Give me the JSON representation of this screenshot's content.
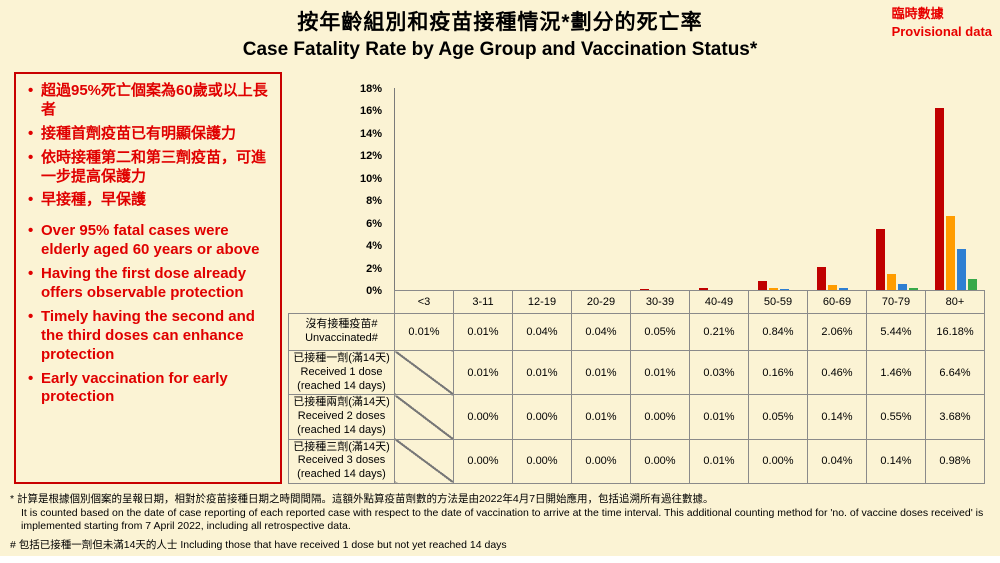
{
  "header": {
    "provisional_zh": "臨時數據",
    "provisional_en": "Provisional data",
    "title_zh": "按年齡組別和疫苗接種情況*劃分的死亡率",
    "title_en": "Case Fatality Rate by Age Group and Vaccination Status*",
    "accent_red": "#E00000"
  },
  "key_messages": {
    "zh": [
      "超過95%死亡個案為60歲或以上長者",
      "接種首劑疫苗已有明顯保護力",
      "依時接種第二和第三劑疫苗，可進一步提高保護力",
      "早接種，早保護"
    ],
    "en": [
      "Over 95% fatal cases were elderly aged 60 years or above",
      "Having the first dose already offers observable protection",
      "Timely having the second and the third doses can enhance protection",
      "Early vaccination for early protection"
    ]
  },
  "chart_data": {
    "type": "bar",
    "title": "Case Fatality Rate by Age Group and Vaccination Status*",
    "title_zh": "按年齡組別和疫苗接種情況*劃分的死亡率",
    "xlabel": "",
    "ylabel": "",
    "ylim": [
      0,
      18
    ],
    "grid": false,
    "legend_position": "table-row-labels",
    "y_ticks": [
      "0%",
      "2%",
      "4%",
      "6%",
      "8%",
      "10%",
      "12%",
      "14%",
      "16%",
      "18%"
    ],
    "categories": [
      "<3",
      "3-11",
      "12-19",
      "20-29",
      "30-39",
      "40-49",
      "50-59",
      "60-69",
      "70-79",
      "80+"
    ],
    "series": [
      {
        "label_lines": [
          "沒有接種疫苗#",
          "Unvaccinated#"
        ],
        "color": "#C00000",
        "values": [
          0.01,
          0.01,
          0.04,
          0.04,
          0.05,
          0.21,
          0.84,
          2.06,
          5.44,
          16.18
        ],
        "display": [
          "0.01%",
          "0.01%",
          "0.04%",
          "0.04%",
          "0.05%",
          "0.21%",
          "0.84%",
          "2.06%",
          "5.44%",
          "16.18%"
        ]
      },
      {
        "label_lines": [
          "已接種一劑(滿14天)",
          "Received 1 dose",
          "(reached 14 days)"
        ],
        "color": "#FF9C00",
        "values": [
          null,
          0.01,
          0.01,
          0.01,
          0.01,
          0.03,
          0.16,
          0.46,
          1.46,
          6.64
        ],
        "display": [
          null,
          "0.01%",
          "0.01%",
          "0.01%",
          "0.01%",
          "0.03%",
          "0.16%",
          "0.46%",
          "1.46%",
          "6.64%"
        ]
      },
      {
        "label_lines": [
          "已接種兩劑(滿14天)",
          "Received 2 doses",
          "(reached 14 days)"
        ],
        "color": "#2E7FD2",
        "values": [
          null,
          0.0,
          0.0,
          0.01,
          0.0,
          0.01,
          0.05,
          0.14,
          0.55,
          3.68
        ],
        "display": [
          null,
          "0.00%",
          "0.00%",
          "0.01%",
          "0.00%",
          "0.01%",
          "0.05%",
          "0.14%",
          "0.55%",
          "3.68%"
        ]
      },
      {
        "label_lines": [
          "已接種三劑(滿14天)",
          "Received 3 doses",
          "(reached 14 days)"
        ],
        "color": "#38A94A",
        "values": [
          null,
          0.0,
          0.0,
          0.0,
          0.0,
          0.01,
          0.0,
          0.04,
          0.14,
          0.98
        ],
        "display": [
          null,
          "0.00%",
          "0.00%",
          "0.00%",
          "0.00%",
          "0.01%",
          "0.00%",
          "0.04%",
          "0.14%",
          "0.98%"
        ]
      }
    ]
  },
  "footnotes": {
    "star_zh": "* 計算是根據個別個案的呈報日期，相對於疫苗接種日期之時間間隔。這額外點算疫苗劑數的方法是由2022年4月7日開始應用，包括追溯所有過往數據。",
    "star_en": "It is counted based on the date of case reporting of each reported case with respect to the date of vaccination to arrive at the time interval.  This additional counting method for 'no. of vaccine doses received' is implemented starting from 7 April 2022, including all retrospective data.",
    "hash": "# 包括已接種一劑但未滿14天的人士  Including those that have received 1 dose but not yet reached 14 days"
  }
}
